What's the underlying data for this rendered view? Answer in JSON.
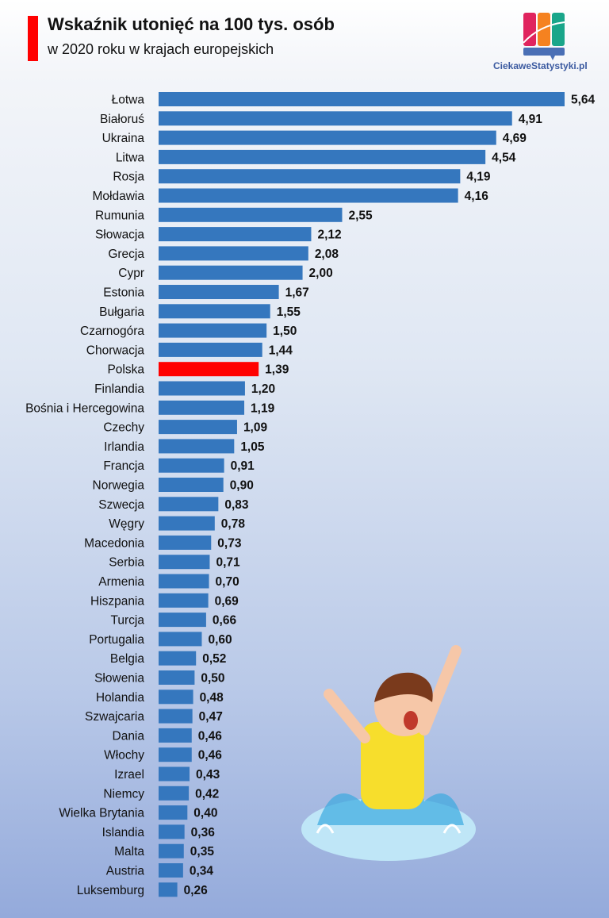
{
  "header": {
    "title": "Wskaźnik utonięć na 100 tys. osób",
    "subtitle": "w 2020 roku w krajach europejskich"
  },
  "logo": {
    "text": "CiekaweStatystyki.pl",
    "colors": [
      "#e0245e",
      "#f58220",
      "#1aa68a",
      "#4a6fb5"
    ]
  },
  "chart_data": {
    "type": "bar",
    "orientation": "horizontal",
    "title": "Wskaźnik utonięć na 100 tys. osób",
    "subtitle": "w 2020 roku w krajach europejskich",
    "categories": [
      "Łotwa",
      "Białoruś",
      "Ukraina",
      "Litwa",
      "Rosja",
      "Mołdawia",
      "Rumunia",
      "Słowacja",
      "Grecja",
      "Cypr",
      "Estonia",
      "Bułgaria",
      "Czarnogóra",
      "Chorwacja",
      "Polska",
      "Finlandia",
      "Bośnia i Hercegowina",
      "Czechy",
      "Irlandia",
      "Francja",
      "Norwegia",
      "Szwecja",
      "Węgry",
      "Macedonia",
      "Serbia",
      "Armenia",
      "Hiszpania",
      "Turcja",
      "Portugalia",
      "Belgia",
      "Słowenia",
      "Holandia",
      "Szwajcaria",
      "Dania",
      "Włochy",
      "Izrael",
      "Niemcy",
      "Wielka Brytania",
      "Islandia",
      "Malta",
      "Austria",
      "Luksemburg"
    ],
    "values": [
      5.64,
      4.91,
      4.69,
      4.54,
      4.19,
      4.16,
      2.55,
      2.12,
      2.08,
      2.0,
      1.67,
      1.55,
      1.5,
      1.44,
      1.39,
      1.2,
      1.19,
      1.09,
      1.05,
      0.91,
      0.9,
      0.83,
      0.78,
      0.73,
      0.71,
      0.7,
      0.69,
      0.66,
      0.6,
      0.52,
      0.5,
      0.48,
      0.47,
      0.46,
      0.46,
      0.43,
      0.42,
      0.4,
      0.36,
      0.35,
      0.34,
      0.26
    ],
    "data_labels": [
      "5,64",
      "4,91",
      "4,69",
      "4,54",
      "4,19",
      "4,16",
      "2,55",
      "2,12",
      "2,08",
      "2,00",
      "1,67",
      "1,55",
      "1,50",
      "1,44",
      "1,39",
      "1,20",
      "1,19",
      "1,09",
      "1,05",
      "0,91",
      "0,90",
      "0,83",
      "0,78",
      "0,73",
      "0,71",
      "0,70",
      "0,69",
      "0,66",
      "0,60",
      "0,52",
      "0,50",
      "0,48",
      "0,47",
      "0,46",
      "0,46",
      "0,43",
      "0,42",
      "0,40",
      "0,36",
      "0,35",
      "0,34",
      "0,26"
    ],
    "highlight": "Polska",
    "bar_color": "#3577be",
    "highlight_color": "#ff0000",
    "xlim": [
      0,
      5.64
    ],
    "grid": false,
    "legend": "none"
  }
}
